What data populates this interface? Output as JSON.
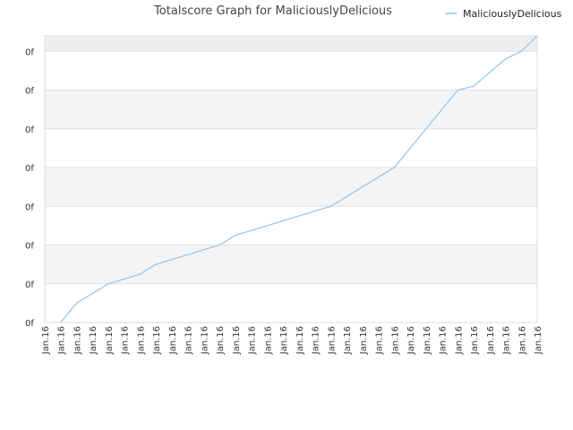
{
  "chart_data": {
    "type": "line",
    "title": "Totalscore Graph for MaliciouslyDelicious",
    "xlabel": "",
    "ylabel": "",
    "legend_position": "top-right",
    "grid": true,
    "y_tick_labels": [
      "0f",
      "0f",
      "0f",
      "0f",
      "0f",
      "0f",
      "0f",
      "0f"
    ],
    "x_tick_labels": [
      "Jan.16",
      "Jan.16",
      "Jan.16",
      "Jan.16",
      "Jan.16",
      "Jan.16",
      "Jan.16",
      "Jan.16",
      "Jan.16",
      "Jan.16",
      "Jan.16",
      "Jan.16",
      "Jan.16",
      "Jan.16",
      "Jan.16",
      "Jan.16",
      "Jan.16",
      "Jan.16",
      "Jan.16",
      "Jan.16",
      "Jan.16",
      "Jan.16",
      "Jan.16",
      "Jan.16",
      "Jan.16",
      "Jan.16",
      "Jan.16",
      "Jan.16",
      "Jan.16",
      "Jan.16",
      "Jan.16",
      "Jan.16"
    ],
    "ylim": [
      0,
      7.4
    ],
    "xlim": [
      0,
      31
    ],
    "series": [
      {
        "name": "MaliciouslyDelicious",
        "color": "#90c4ee",
        "x": [
          1,
          2,
          4,
          6,
          7,
          9,
          11,
          12,
          14,
          16,
          18,
          20,
          22,
          24,
          26,
          27,
          29,
          30,
          31
        ],
        "y": [
          0,
          0.5,
          1.0,
          1.25,
          1.5,
          1.75,
          2.0,
          2.25,
          2.5,
          2.75,
          3.0,
          3.5,
          4.0,
          5.0,
          6.0,
          6.1,
          6.8,
          7.0,
          7.4
        ]
      }
    ]
  }
}
